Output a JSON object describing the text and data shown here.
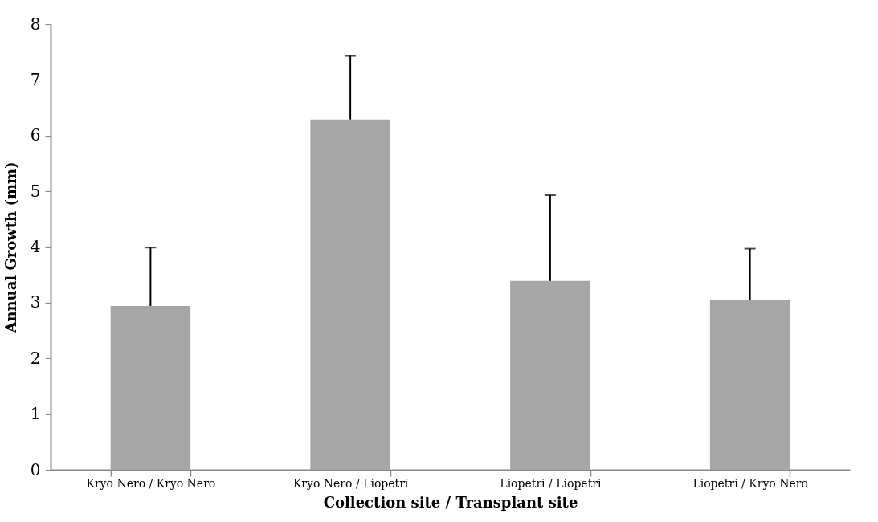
{
  "chart_data": {
    "type": "bar",
    "xlabel": "Collection site / Transplant site",
    "ylabel": "Annual Growth  (mm)",
    "categories": [
      "Kryo Nero / Kryo Nero",
      "Kryo Nero / Liopetri",
      "Liopetri / Liopetri",
      "Liopetri / Kryo Nero"
    ],
    "values": [
      2.94,
      6.29,
      3.39,
      3.04
    ],
    "errors": [
      [
        2.94,
        3.99
      ],
      [
        6.29,
        7.43
      ],
      [
        3.39,
        4.93
      ],
      [
        3.04,
        3.97
      ]
    ],
    "color": "#a6a6a6",
    "ylim": [
      0,
      8
    ],
    "yticks": [
      0,
      1,
      2,
      3,
      4,
      5,
      6,
      7,
      8
    ],
    "grid": false
  }
}
